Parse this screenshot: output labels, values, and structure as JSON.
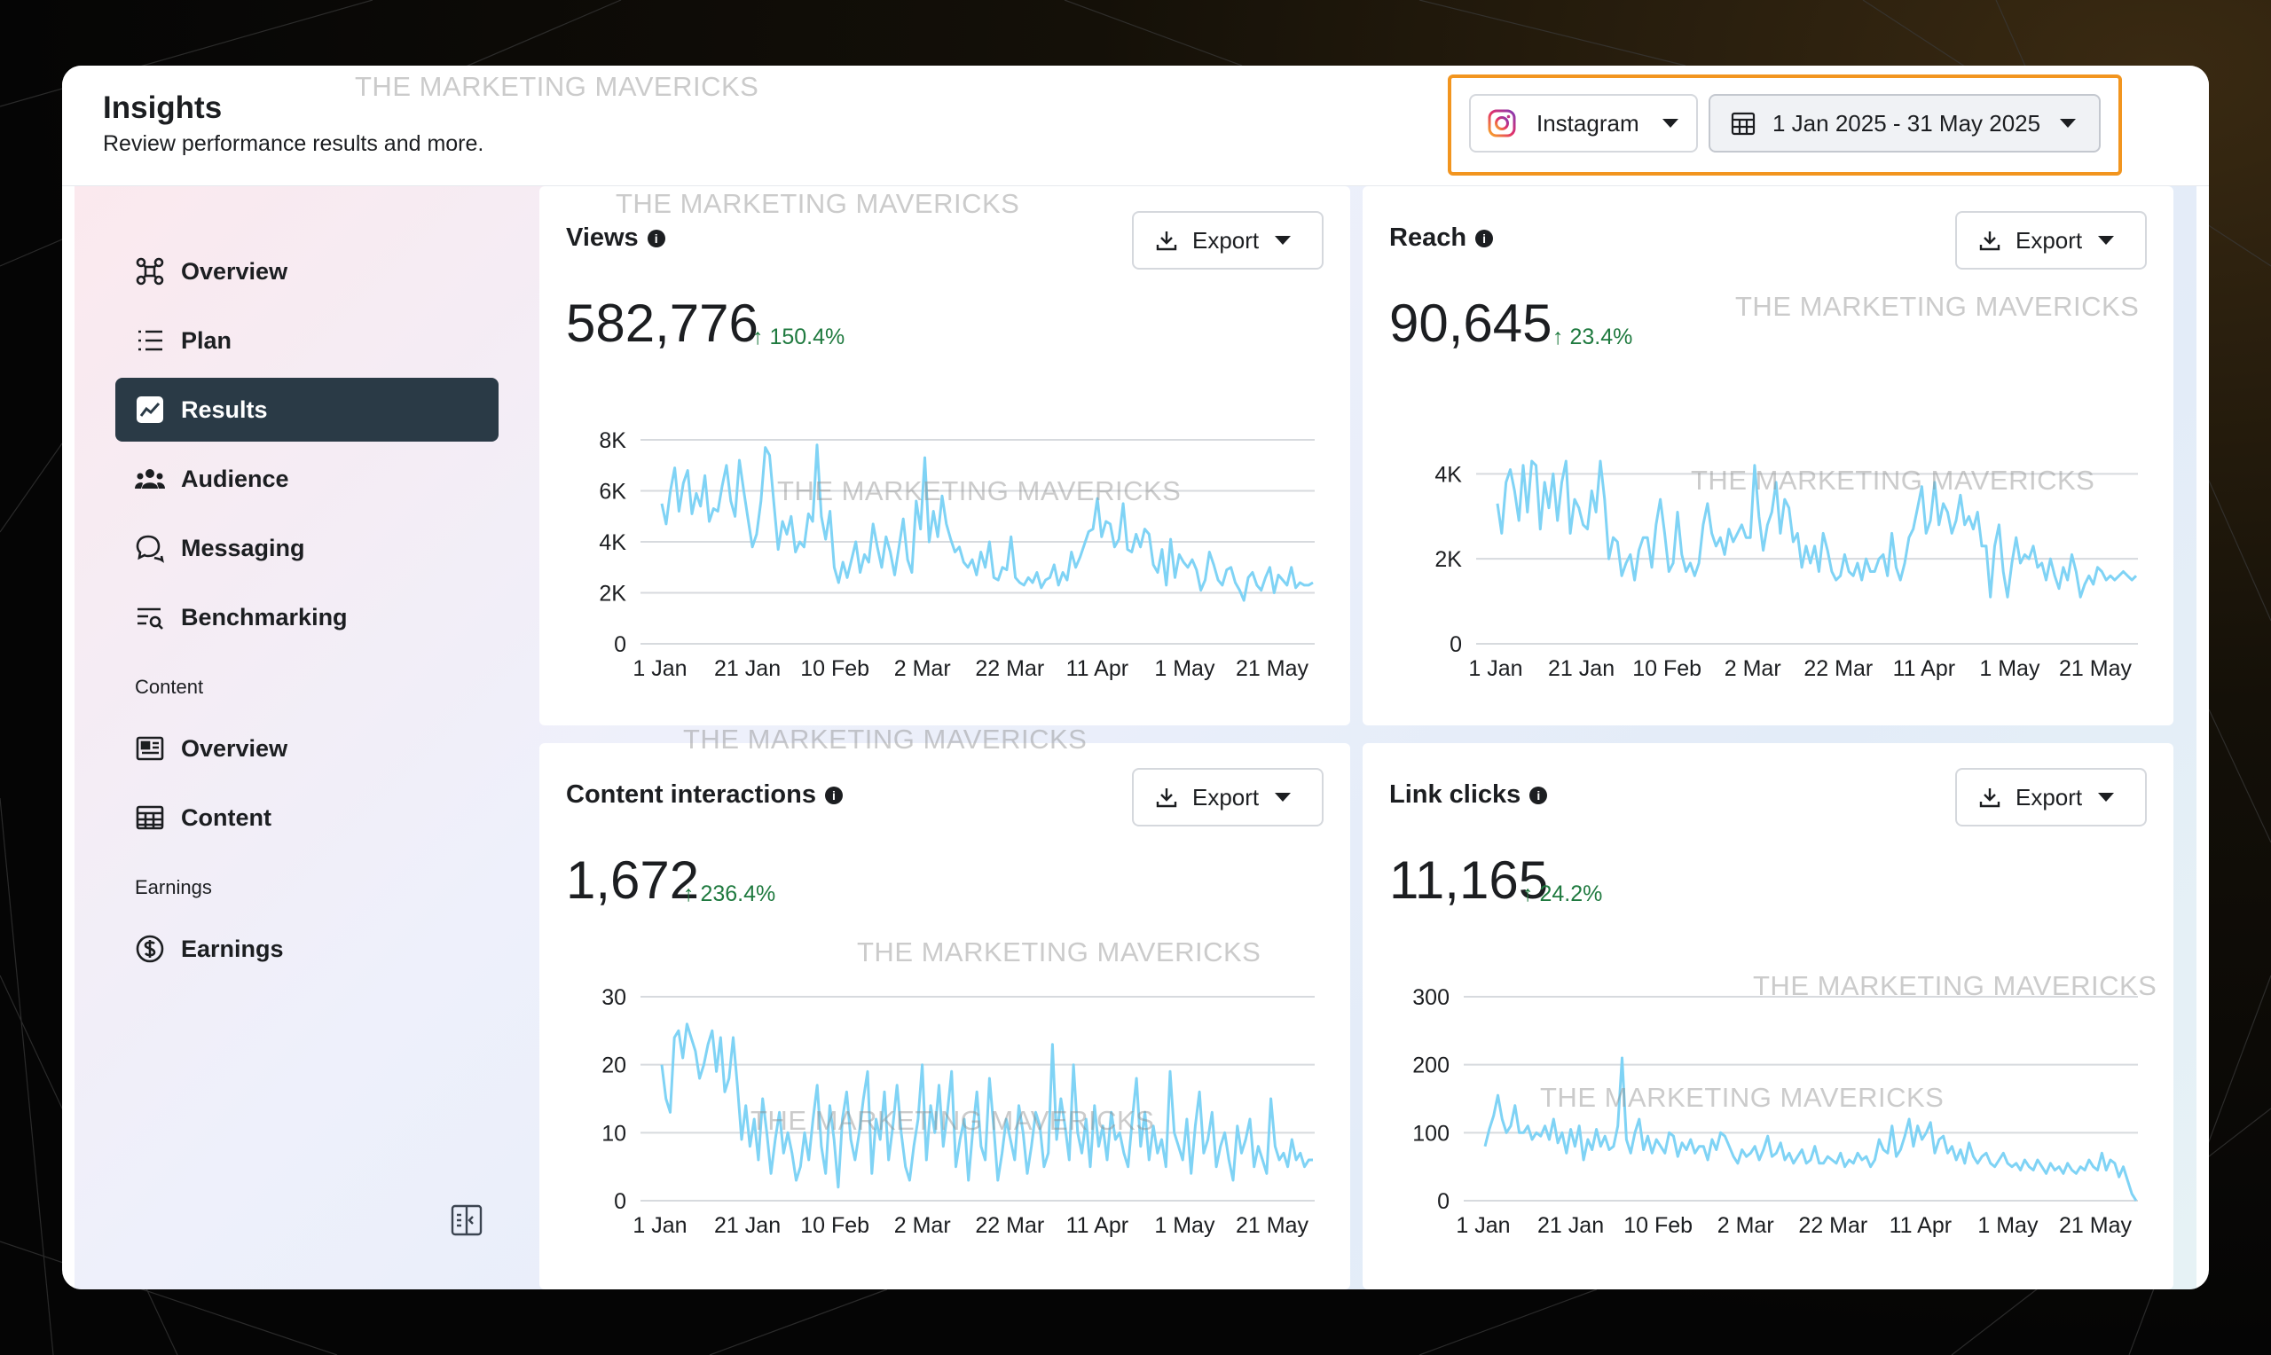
{
  "header": {
    "title": "Insights",
    "subtitle": "Review performance results and more.",
    "platform": "Instagram",
    "date_range": "1 Jan 2025 - 31 May 2025",
    "watermark": "THE MARKETING MAVERICKS"
  },
  "sidebar": {
    "items": [
      {
        "label": "Overview",
        "icon": "network-icon"
      },
      {
        "label": "Plan",
        "icon": "list-icon"
      },
      {
        "label": "Results",
        "icon": "trend-chart-icon",
        "active": true
      },
      {
        "label": "Audience",
        "icon": "people-icon"
      },
      {
        "label": "Messaging",
        "icon": "chat-bubble-icon"
      },
      {
        "label": "Benchmarking",
        "icon": "benchmark-icon"
      }
    ],
    "content_section": "Content",
    "content_items": [
      {
        "label": "Overview",
        "icon": "newspaper-icon"
      },
      {
        "label": "Content",
        "icon": "table-icon"
      }
    ],
    "earnings_section": "Earnings",
    "earnings_items": [
      {
        "label": "Earnings",
        "icon": "dollar-circle-icon"
      }
    ]
  },
  "export_label": "Export",
  "colors": {
    "line": "#7fd3f5",
    "active_nav": "#2a3a46",
    "delta": "#1f7a3f",
    "highlight": "#f2951f"
  },
  "cards": [
    {
      "title": "Views",
      "total": "582,776",
      "delta": "150.4%",
      "export": "Export"
    },
    {
      "title": "Reach",
      "total": "90,645",
      "delta": "23.4%",
      "export": "Export"
    },
    {
      "title": "Content interactions",
      "total": "1,672",
      "delta": "236.4%",
      "export": "Export"
    },
    {
      "title": "Link clicks",
      "total": "11,165",
      "delta": "24.2%",
      "export": "Export"
    }
  ],
  "chart_data": [
    {
      "type": "line",
      "x_ticks": [
        "1 Jan",
        "21 Jan",
        "10 Feb",
        "2 Mar",
        "22 Mar",
        "11 Apr",
        "1 May",
        "21 May"
      ],
      "y_ticks": [
        "0",
        "2K",
        "4K",
        "6K",
        "8K"
      ],
      "ylim": [
        0,
        8000
      ],
      "series": [
        {
          "name": "Views",
          "values": [
            5500,
            4700,
            6000,
            6900,
            5200,
            6300,
            6800,
            5100,
            5900,
            5400,
            6600,
            4800,
            5300,
            5200,
            6200,
            7000,
            5600,
            5000,
            7200,
            6000,
            4900,
            3800,
            4300,
            5600,
            7700,
            7400,
            5500,
            3700,
            4800,
            4300,
            5000,
            3600,
            4000,
            3800,
            5100,
            4800,
            7800,
            5000,
            4100,
            5200,
            3000,
            2400,
            3200,
            2600,
            3300,
            4000,
            2800,
            3500,
            3200,
            4700,
            3800,
            3000,
            4200,
            3600,
            2700,
            3800,
            4900,
            3300,
            2800,
            5600,
            4500,
            7300,
            4000,
            5200,
            4200,
            5800,
            4700,
            4100,
            3600,
            3800,
            3200,
            3000,
            3300,
            2700,
            3600,
            3000,
            4000,
            2600,
            2500,
            3000,
            2900,
            4200,
            2600,
            2400,
            2300,
            2600,
            2400,
            2800,
            2200,
            2500,
            2600,
            3100,
            2300,
            2800,
            2500,
            3600,
            3000,
            3400,
            3900,
            4400,
            4500,
            5700,
            4200,
            4800,
            4700,
            3800,
            4100,
            5500,
            3700,
            3600,
            4300,
            3800,
            4500,
            4300,
            3100,
            2800,
            3700,
            2300,
            4100,
            2600,
            3500,
            3200,
            3000,
            3300,
            2900,
            2100,
            2500,
            3600,
            3100,
            2500,
            2300,
            2900,
            3000,
            2400,
            2100,
            1700,
            2600,
            2800,
            2300,
            2100,
            2600,
            3000,
            2000,
            2700,
            2500,
            2300,
            3000,
            2200,
            2400,
            2300,
            2300,
            2400
          ]
        }
      ]
    },
    {
      "type": "line",
      "x_ticks": [
        "1 Jan",
        "21 Jan",
        "10 Feb",
        "2 Mar",
        "22 Mar",
        "11 Apr",
        "1 May",
        "21 May"
      ],
      "y_ticks": [
        "0",
        "2K",
        "4K"
      ],
      "ylim": [
        0,
        4800
      ],
      "series": [
        {
          "name": "Reach",
          "values": [
            3300,
            2600,
            3800,
            4100,
            3600,
            2900,
            4200,
            3100,
            4300,
            4200,
            2700,
            3800,
            3200,
            4000,
            2900,
            3800,
            4300,
            2600,
            3400,
            3200,
            2800,
            2700,
            3600,
            3100,
            4300,
            3400,
            2000,
            2500,
            2400,
            1600,
            1900,
            2100,
            1500,
            2200,
            2500,
            2500,
            1800,
            2800,
            3400,
            2600,
            1700,
            1900,
            3100,
            2100,
            1700,
            1900,
            1600,
            1900,
            2800,
            3300,
            2600,
            2300,
            2500,
            2100,
            2700,
            2400,
            2600,
            2800,
            2500,
            2500,
            4200,
            3000,
            2200,
            2800,
            3100,
            3800,
            2600,
            3400,
            3200,
            2400,
            2600,
            1800,
            2300,
            1900,
            2300,
            1700,
            2600,
            2200,
            1700,
            1500,
            1600,
            2100,
            1700,
            1600,
            1900,
            1500,
            2000,
            1700,
            1700,
            2000,
            2100,
            1600,
            2600,
            1800,
            1500,
            1900,
            2500,
            2700,
            3200,
            3700,
            2600,
            2900,
            3800,
            2800,
            3300,
            3100,
            2600,
            2900,
            3500,
            2800,
            3000,
            2700,
            3100,
            2300,
            2300,
            1100,
            2300,
            2800,
            1700,
            1100,
            1900,
            2500,
            1900,
            2100,
            2000,
            2300,
            1800,
            1900,
            1500,
            2000,
            1600,
            1300,
            1800,
            1500,
            2100,
            1700,
            1100,
            1400,
            1600,
            1400,
            1800,
            1700,
            1500,
            1600,
            1500,
            1600,
            1700,
            1600,
            1500,
            1600
          ]
        }
      ]
    },
    {
      "type": "line",
      "x_ticks": [
        "1 Jan",
        "21 Jan",
        "10 Feb",
        "2 Mar",
        "22 Mar",
        "11 Apr",
        "1 May",
        "21 May"
      ],
      "y_ticks": [
        "0",
        "10",
        "20",
        "30"
      ],
      "ylim": [
        0,
        30
      ],
      "series": [
        {
          "name": "Content interactions",
          "values": [
            20,
            15,
            13,
            24,
            25,
            21,
            26,
            24,
            22,
            18,
            20,
            23,
            25,
            19,
            24,
            16,
            18,
            24,
            17,
            9,
            14,
            8,
            12,
            6,
            15,
            10,
            4,
            9,
            13,
            7,
            10,
            7,
            3,
            5,
            10,
            6,
            12,
            17,
            8,
            4,
            14,
            9,
            2,
            12,
            16,
            9,
            6,
            10,
            15,
            19,
            4,
            12,
            9,
            16,
            6,
            11,
            17,
            10,
            5,
            3,
            8,
            12,
            20,
            6,
            14,
            10,
            17,
            8,
            13,
            19,
            5,
            9,
            12,
            3,
            10,
            16,
            8,
            6,
            18,
            11,
            3,
            7,
            12,
            9,
            6,
            14,
            10,
            4,
            8,
            13,
            11,
            5,
            7,
            23,
            9,
            15,
            11,
            6,
            20,
            10,
            7,
            12,
            5,
            14,
            8,
            11,
            6,
            13,
            9,
            10,
            7,
            5,
            12,
            18,
            8,
            13,
            6,
            11,
            7,
            9,
            5,
            19,
            10,
            8,
            6,
            12,
            4,
            11,
            16,
            7,
            9,
            13,
            5,
            8,
            10,
            6,
            3,
            11,
            7,
            9,
            12,
            5,
            8,
            6,
            4,
            15,
            8,
            6,
            7,
            5,
            9,
            6,
            7,
            5,
            6,
            6
          ]
        }
      ]
    },
    {
      "type": "line",
      "x_ticks": [
        "1 Jan",
        "21 Jan",
        "10 Feb",
        "2 Mar",
        "22 Mar",
        "11 Apr",
        "1 May",
        "21 May"
      ],
      "y_ticks": [
        "0",
        "100",
        "200",
        "300"
      ],
      "ylim": [
        0,
        300
      ],
      "series": [
        {
          "name": "Instagram link clicks",
          "values": [
            80,
            105,
            125,
            155,
            120,
            100,
            110,
            140,
            100,
            100,
            110,
            90,
            100,
            95,
            110,
            90,
            120,
            85,
            100,
            70,
            105,
            80,
            110,
            60,
            90,
            75,
            105,
            80,
            95,
            75,
            80,
            110,
            210,
            90,
            70,
            100,
            120,
            75,
            95,
            70,
            90,
            80,
            70,
            100,
            95,
            65,
            85,
            75,
            90,
            70,
            80,
            80,
            60,
            90,
            75,
            100,
            95,
            80,
            65,
            55,
            75,
            65,
            70,
            80,
            60,
            75,
            95,
            65,
            70,
            85,
            60,
            70,
            55,
            65,
            75,
            55,
            60,
            80,
            55,
            55,
            65,
            60,
            55,
            70,
            50,
            60,
            55,
            70,
            60,
            65,
            50,
            60,
            90,
            75,
            70,
            110,
            65,
            75,
            95,
            120,
            80,
            110,
            90,
            100,
            115,
            70,
            90,
            95,
            70,
            80,
            60,
            75,
            55,
            85,
            65,
            55,
            65,
            70,
            55,
            50,
            60,
            70,
            55,
            50,
            55,
            45,
            60,
            50,
            45,
            60,
            50,
            40,
            55,
            45,
            50,
            40,
            55,
            45,
            40,
            50,
            45,
            60,
            50,
            45,
            70,
            45,
            60,
            55,
            35,
            50,
            30,
            10,
            0
          ]
        }
      ]
    }
  ]
}
